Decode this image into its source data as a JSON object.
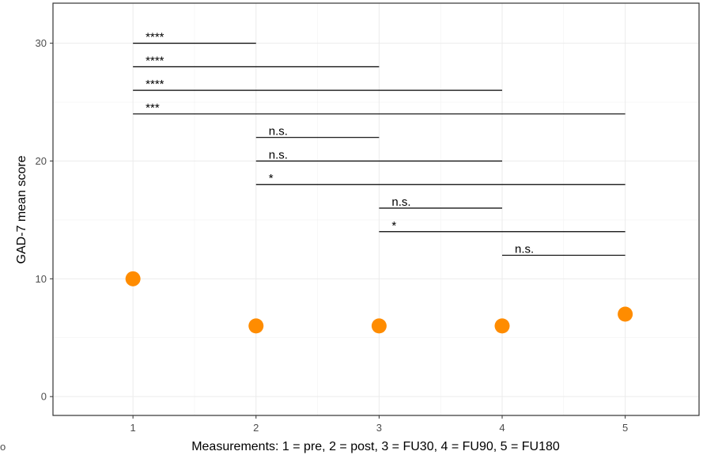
{
  "chart_data": {
    "type": "scatter",
    "title": "",
    "xlabel": "Measurements: 1 = pre, 2 = post, 3 = FU30, 4 = FU90, 5 = FU180",
    "ylabel": "GAD-7 mean score",
    "xlim": [
      0.35,
      5.6
    ],
    "ylim": [
      -1.6,
      33.4
    ],
    "x_ticks": [
      "1",
      "2",
      "3",
      "4",
      "5"
    ],
    "y_ticks": [
      "0",
      "10",
      "20",
      "30"
    ],
    "x_tick_values": [
      1,
      2,
      3,
      4,
      5
    ],
    "y_tick_values": [
      0,
      10,
      20,
      30
    ],
    "grid": true,
    "points": [
      {
        "x": 1,
        "y": 10
      },
      {
        "x": 2,
        "y": 6
      },
      {
        "x": 3,
        "y": 6
      },
      {
        "x": 4,
        "y": 6
      },
      {
        "x": 5,
        "y": 7
      }
    ],
    "point_color": "#ff8c00",
    "comparisons": [
      {
        "from": 1,
        "to": 2,
        "y": 30,
        "label": "****"
      },
      {
        "from": 1,
        "to": 3,
        "y": 28,
        "label": "****"
      },
      {
        "from": 1,
        "to": 4,
        "y": 26,
        "label": "****"
      },
      {
        "from": 1,
        "to": 5,
        "y": 24,
        "label": "***"
      },
      {
        "from": 2,
        "to": 3,
        "y": 22,
        "label": "n.s."
      },
      {
        "from": 2,
        "to": 4,
        "y": 20,
        "label": "n.s."
      },
      {
        "from": 2,
        "to": 5,
        "y": 18,
        "label": "*"
      },
      {
        "from": 3,
        "to": 4,
        "y": 16,
        "label": "n.s."
      },
      {
        "from": 3,
        "to": 5,
        "y": 14,
        "label": "*"
      },
      {
        "from": 4,
        "to": 5,
        "y": 12,
        "label": "n.s."
      }
    ],
    "corner_mark": "o"
  }
}
